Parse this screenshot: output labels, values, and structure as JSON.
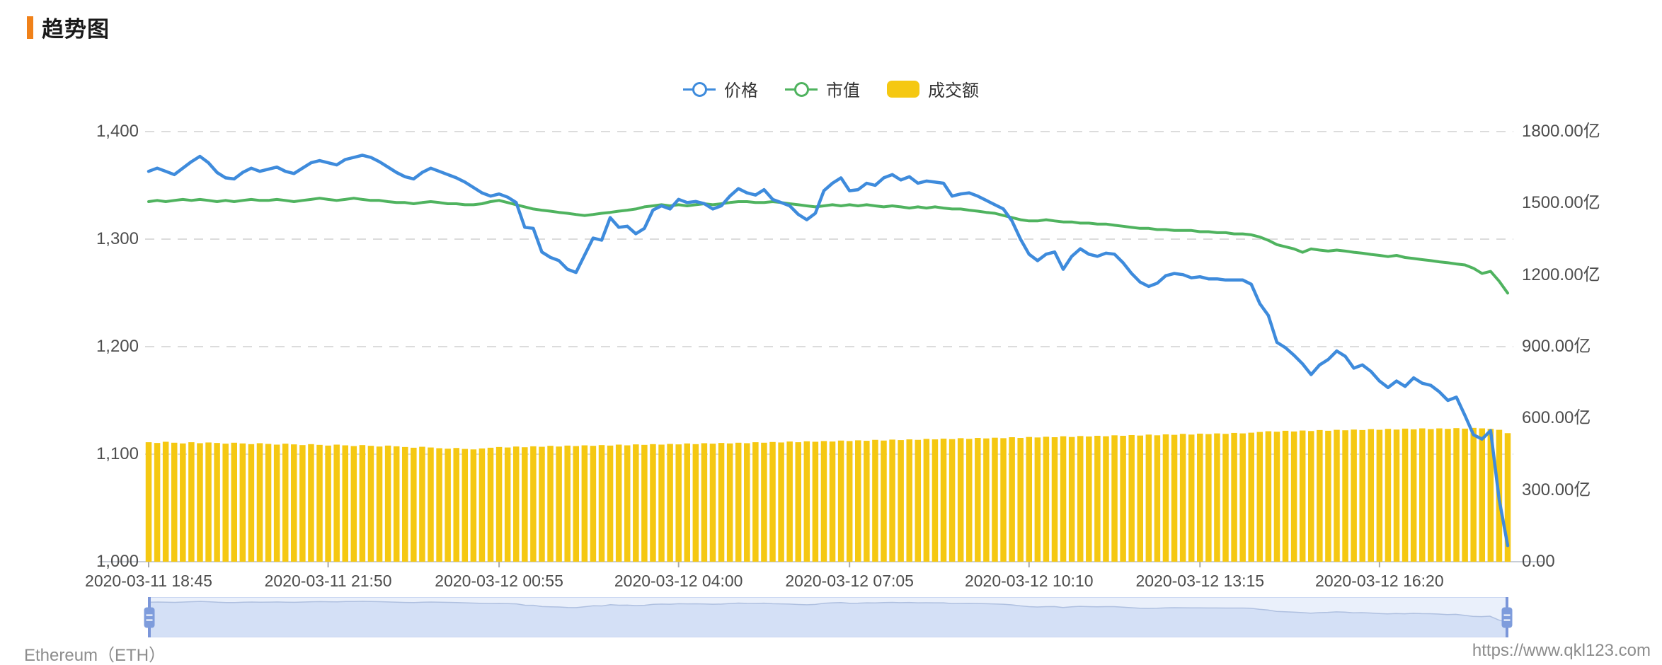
{
  "header": {
    "title": "趋势图"
  },
  "legend": {
    "items": [
      {
        "label": "价格",
        "type": "line"
      },
      {
        "label": "市值",
        "type": "line"
      },
      {
        "label": "成交额",
        "type": "bar"
      }
    ]
  },
  "footer": {
    "left": "Ethereum（ETH）",
    "right": "https://www.qkl123.com"
  },
  "colors": {
    "price": "#3E8BDC",
    "marketcap": "#4FB35F",
    "volume": "#F5C812",
    "grid": "#DCDCDC",
    "baseline": "#C8CDD6",
    "axis_text": "#4D4D4D",
    "title_accent": "#F08119",
    "slider_area": "#D4E0F6",
    "slider_line": "#AFC0E0",
    "slider_handle": "#7B96D9"
  },
  "chart_data": {
    "type": "mixed",
    "title": "趋势图",
    "legend_position": "top-center",
    "grid": "dashed-horizontal",
    "left_axis": {
      "min": 1000,
      "max": 1400,
      "tick_values": [
        1400,
        1300,
        1200,
        1100,
        1000
      ],
      "tick_labels": [
        "1,400",
        "1,300",
        "1,200",
        "1,100",
        "1,000"
      ]
    },
    "right_axis": {
      "min": 0,
      "max": 1800,
      "tick_values": [
        1800,
        1500,
        1200,
        900,
        600,
        300,
        0
      ],
      "tick_labels": [
        "1800.00亿",
        "1500.00亿",
        "1200.00亿",
        "900.00亿",
        "600.00亿",
        "300.00亿",
        "0.00"
      ]
    },
    "x_tick_labels": [
      "2020-03-11 18:45",
      "2020-03-11 21:50",
      "2020-03-12 00:55",
      "2020-03-12 04:00",
      "2020-03-12 07:05",
      "2020-03-12 10:10",
      "2020-03-12 13:15",
      "2020-03-12 16:20"
    ],
    "x_tick_indices": [
      0,
      21,
      41,
      62,
      82,
      103,
      123,
      144
    ],
    "series": [
      {
        "name": "价格",
        "type": "line",
        "axis": "left",
        "color": "#3E8BDC",
        "values": [
          1363,
          1366,
          1363,
          1360,
          1366,
          1372,
          1377,
          1371,
          1362,
          1357,
          1356,
          1362,
          1366,
          1363,
          1365,
          1367,
          1363,
          1361,
          1366,
          1371,
          1373,
          1371,
          1369,
          1374,
          1376,
          1378,
          1376,
          1372,
          1367,
          1362,
          1358,
          1356,
          1362,
          1366,
          1363,
          1360,
          1357,
          1353,
          1348,
          1343,
          1340,
          1342,
          1339,
          1334,
          1311,
          1310,
          1288,
          1283,
          1280,
          1272,
          1269,
          1285,
          1301,
          1299,
          1320,
          1311,
          1312,
          1305,
          1310,
          1327,
          1331,
          1328,
          1337,
          1334,
          1335,
          1333,
          1328,
          1331,
          1340,
          1347,
          1343,
          1341,
          1346,
          1337,
          1334,
          1331,
          1323,
          1318,
          1324,
          1345,
          1352,
          1357,
          1345,
          1346,
          1352,
          1350,
          1357,
          1360,
          1355,
          1358,
          1352,
          1354,
          1353,
          1352,
          1340,
          1342,
          1343,
          1340,
          1336,
          1332,
          1328,
          1317,
          1300,
          1286,
          1280,
          1286,
          1288,
          1272,
          1284,
          1291,
          1286,
          1284,
          1287,
          1286,
          1278,
          1268,
          1260,
          1256,
          1259,
          1266,
          1268,
          1267,
          1264,
          1265,
          1263,
          1263,
          1262,
          1262,
          1262,
          1258,
          1240,
          1229,
          1204,
          1199,
          1192,
          1184,
          1174,
          1183,
          1188,
          1196,
          1191,
          1180,
          1183,
          1177,
          1168,
          1162,
          1168,
          1163,
          1171,
          1166,
          1164,
          1158,
          1150,
          1153,
          1136,
          1118,
          1114,
          1122,
          1058,
          1015
        ]
      },
      {
        "name": "市值",
        "type": "line",
        "axis": "right",
        "unit": "亿",
        "color": "#4FB35F",
        "values": [
          1507,
          1512,
          1507,
          1512,
          1516,
          1512,
          1516,
          1512,
          1507,
          1512,
          1507,
          1512,
          1516,
          1512,
          1512,
          1516,
          1512,
          1507,
          1512,
          1516,
          1521,
          1516,
          1512,
          1516,
          1521,
          1516,
          1512,
          1512,
          1507,
          1503,
          1503,
          1498,
          1503,
          1507,
          1503,
          1498,
          1498,
          1494,
          1494,
          1498,
          1507,
          1512,
          1503,
          1494,
          1485,
          1476,
          1471,
          1467,
          1462,
          1458,
          1453,
          1449,
          1453,
          1458,
          1462,
          1467,
          1471,
          1476,
          1485,
          1489,
          1494,
          1489,
          1494,
          1489,
          1494,
          1498,
          1494,
          1498,
          1503,
          1507,
          1507,
          1503,
          1503,
          1507,
          1503,
          1498,
          1494,
          1489,
          1485,
          1489,
          1494,
          1489,
          1494,
          1489,
          1494,
          1489,
          1485,
          1489,
          1485,
          1480,
          1485,
          1480,
          1485,
          1480,
          1476,
          1476,
          1471,
          1467,
          1462,
          1458,
          1449,
          1440,
          1431,
          1426,
          1426,
          1431,
          1426,
          1422,
          1422,
          1417,
          1417,
          1413,
          1413,
          1408,
          1404,
          1399,
          1395,
          1395,
          1390,
          1390,
          1386,
          1386,
          1386,
          1381,
          1381,
          1377,
          1377,
          1372,
          1372,
          1368,
          1359,
          1345,
          1327,
          1318,
          1309,
          1295,
          1309,
          1304,
          1300,
          1304,
          1300,
          1295,
          1291,
          1286,
          1282,
          1277,
          1282,
          1273,
          1269,
          1264,
          1260,
          1255,
          1251,
          1246,
          1242,
          1228,
          1206,
          1215,
          1174,
          1124
        ]
      },
      {
        "name": "成交额",
        "type": "bar",
        "axis": "right",
        "unit": "亿",
        "color": "#F5C812",
        "values": [
          500,
          497,
          502,
          498,
          495,
          500,
          496,
          499,
          497,
          494,
          498,
          495,
          492,
          496,
          493,
          490,
          494,
          491,
          488,
          492,
          489,
          486,
          490,
          487,
          484,
          488,
          485,
          482,
          486,
          483,
          480,
          477,
          481,
          478,
          475,
          473,
          476,
          472,
          470,
          474,
          477,
          480,
          478,
          482,
          479,
          483,
          481,
          485,
          482,
          486,
          484,
          487,
          485,
          488,
          486,
          490,
          487,
          491,
          489,
          492,
          490,
          493,
          491,
          495,
          492,
          496,
          494,
          497,
          495,
          498,
          496,
          500,
          498,
          501,
          499,
          503,
          500,
          504,
          502,
          505,
          503,
          507,
          505,
          508,
          506,
          510,
          507,
          511,
          509,
          512,
          510,
          514,
          512,
          515,
          513,
          517,
          514,
          518,
          516,
          519,
          517,
          521,
          518,
          522,
          520,
          523,
          521,
          525,
          522,
          526,
          524,
          527,
          525,
          529,
          527,
          530,
          528,
          532,
          529,
          533,
          531,
          535,
          532,
          536,
          534,
          537,
          535,
          539,
          537,
          540,
          543,
          546,
          544,
          548,
          545,
          549,
          547,
          551,
          548,
          552,
          550,
          553,
          551,
          555,
          552,
          556,
          553,
          557,
          554,
          558,
          555,
          558,
          556,
          559,
          557,
          560,
          558,
          556,
          552,
          538
        ]
      }
    ]
  },
  "slider": {
    "range_start": "full-left",
    "range_end": "full-right"
  }
}
